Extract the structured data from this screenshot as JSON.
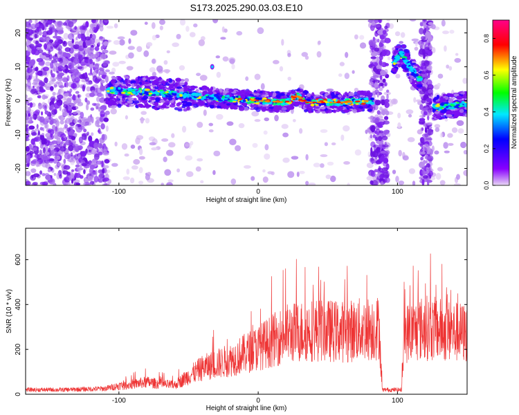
{
  "title": "S173.2025.290.03.03.E10",
  "chart_data": [
    {
      "type": "heatmap",
      "xlabel": "Height of straight line (km)",
      "ylabel": "Frequency (Hz)",
      "xlim": [
        -167,
        150
      ],
      "ylim": [
        -25,
        24
      ],
      "xticks": [
        -100,
        0,
        100
      ],
      "yticks": [
        -20,
        -10,
        0,
        10,
        20
      ],
      "colorbar": {
        "label": "Normalized spectral amplitude",
        "range": [
          0,
          0.9
        ],
        "ticks": [
          "0.0",
          "0.2",
          "0.4",
          "0.6",
          "0.8"
        ],
        "colors": [
          "#e8d8f4",
          "#8800ff",
          "#0000ff",
          "#00e8ff",
          "#00ff00",
          "#ffff00",
          "#ff0000",
          "#ff0088"
        ]
      },
      "features": [
        {
          "name": "broadband noise",
          "x_range": [
            -167,
            -108
          ],
          "freq_range": [
            -25,
            24
          ]
        },
        {
          "name": "main trace",
          "points": [
            [
              -108,
              3
            ],
            [
              -80,
              2.5
            ],
            [
              -50,
              1.5
            ],
            [
              -20,
              0.5
            ],
            [
              0,
              0
            ],
            [
              20,
              -0.5
            ],
            [
              28,
              1.5
            ],
            [
              35,
              -0.5
            ],
            [
              60,
              -0.5
            ],
            [
              82,
              0
            ]
          ]
        },
        {
          "name": "vertical burst",
          "x_range": [
            81,
            93
          ],
          "freq_range": [
            -25,
            24
          ]
        },
        {
          "name": "upper trace",
          "points": [
            [
              97,
              11
            ],
            [
              103,
              14
            ],
            [
              110,
              9
            ],
            [
              117,
              6
            ]
          ]
        },
        {
          "name": "vertical burst",
          "x_range": [
            117,
            124
          ],
          "freq_range": [
            -25,
            24
          ]
        },
        {
          "name": "lower trace",
          "points": [
            [
              126,
              -2
            ],
            [
              138,
              -1.5
            ],
            [
              150,
              -1
            ]
          ]
        }
      ]
    },
    {
      "type": "line",
      "xlabel": "Height of straight line (km)",
      "ylabel": "SNR (10 * v/v)",
      "xlim": [
        -167,
        150
      ],
      "ylim": [
        0,
        740
      ],
      "xticks": [
        -100,
        0,
        100
      ],
      "yticks": [
        0,
        200,
        400,
        600
      ],
      "series": [
        {
          "name": "SNR",
          "color": "#ee3333",
          "envelope": [
            [
              -167,
              20
            ],
            [
              -140,
              20
            ],
            [
              -110,
              25
            ],
            [
              -90,
              50
            ],
            [
              -80,
              60
            ],
            [
              -70,
              50
            ],
            [
              -60,
              45
            ],
            [
              -50,
              90
            ],
            [
              -40,
              130
            ],
            [
              -20,
              170
            ],
            [
              0,
              230
            ],
            [
              20,
              300
            ],
            [
              40,
              320
            ],
            [
              60,
              310
            ],
            [
              87,
              330
            ],
            [
              89,
              20
            ],
            [
              103,
              20
            ],
            [
              105,
              300
            ],
            [
              120,
              330
            ],
            [
              150,
              300
            ]
          ]
        }
      ]
    }
  ]
}
